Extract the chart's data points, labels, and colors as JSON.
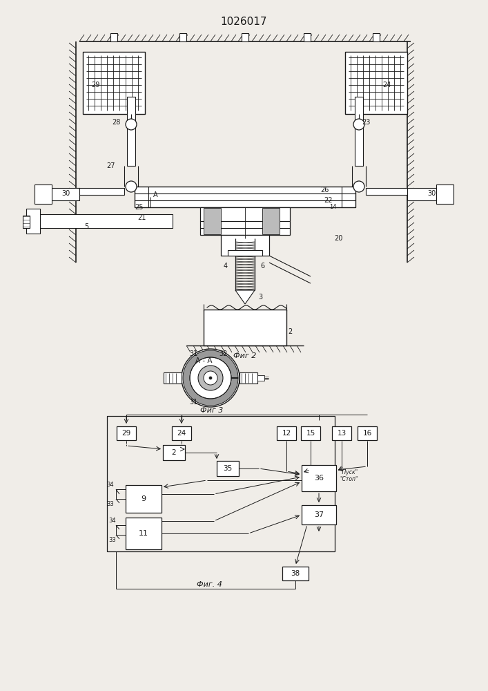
{
  "title": "1026017",
  "bg_color": "#f0ede8",
  "lc": "#1a1a1a",
  "fig2_label": "Фиг 2",
  "fig3_label": "Фиг 3",
  "fig4_label": "Фиг. 4",
  "fig3_aa": "А - А",
  "pusk": "\"Пуск\"",
  "stop": "\"Стоп\""
}
